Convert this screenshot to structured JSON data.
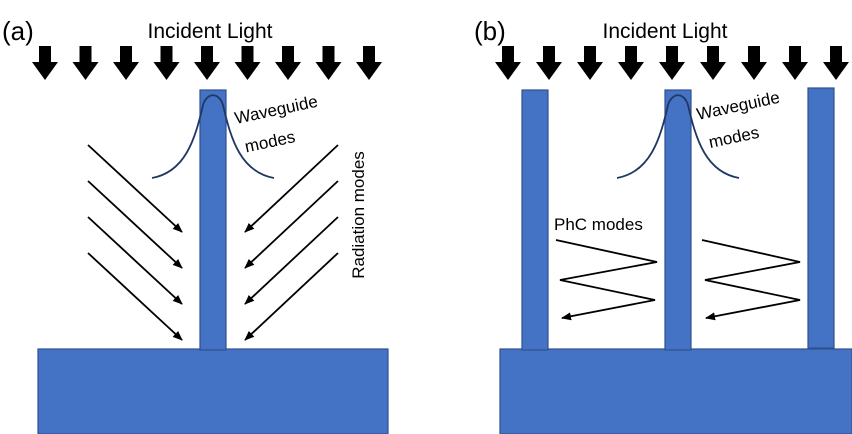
{
  "panels": [
    {
      "label": "(a)",
      "title": "Incident Light",
      "waveguide_label": [
        "Waveguide",
        "modes"
      ],
      "side_label": "Radiation modes"
    },
    {
      "label": "(b)",
      "title": "Incident Light",
      "waveguide_label": [
        "Waveguide",
        "modes"
      ],
      "side_label": "PhC modes"
    }
  ]
}
